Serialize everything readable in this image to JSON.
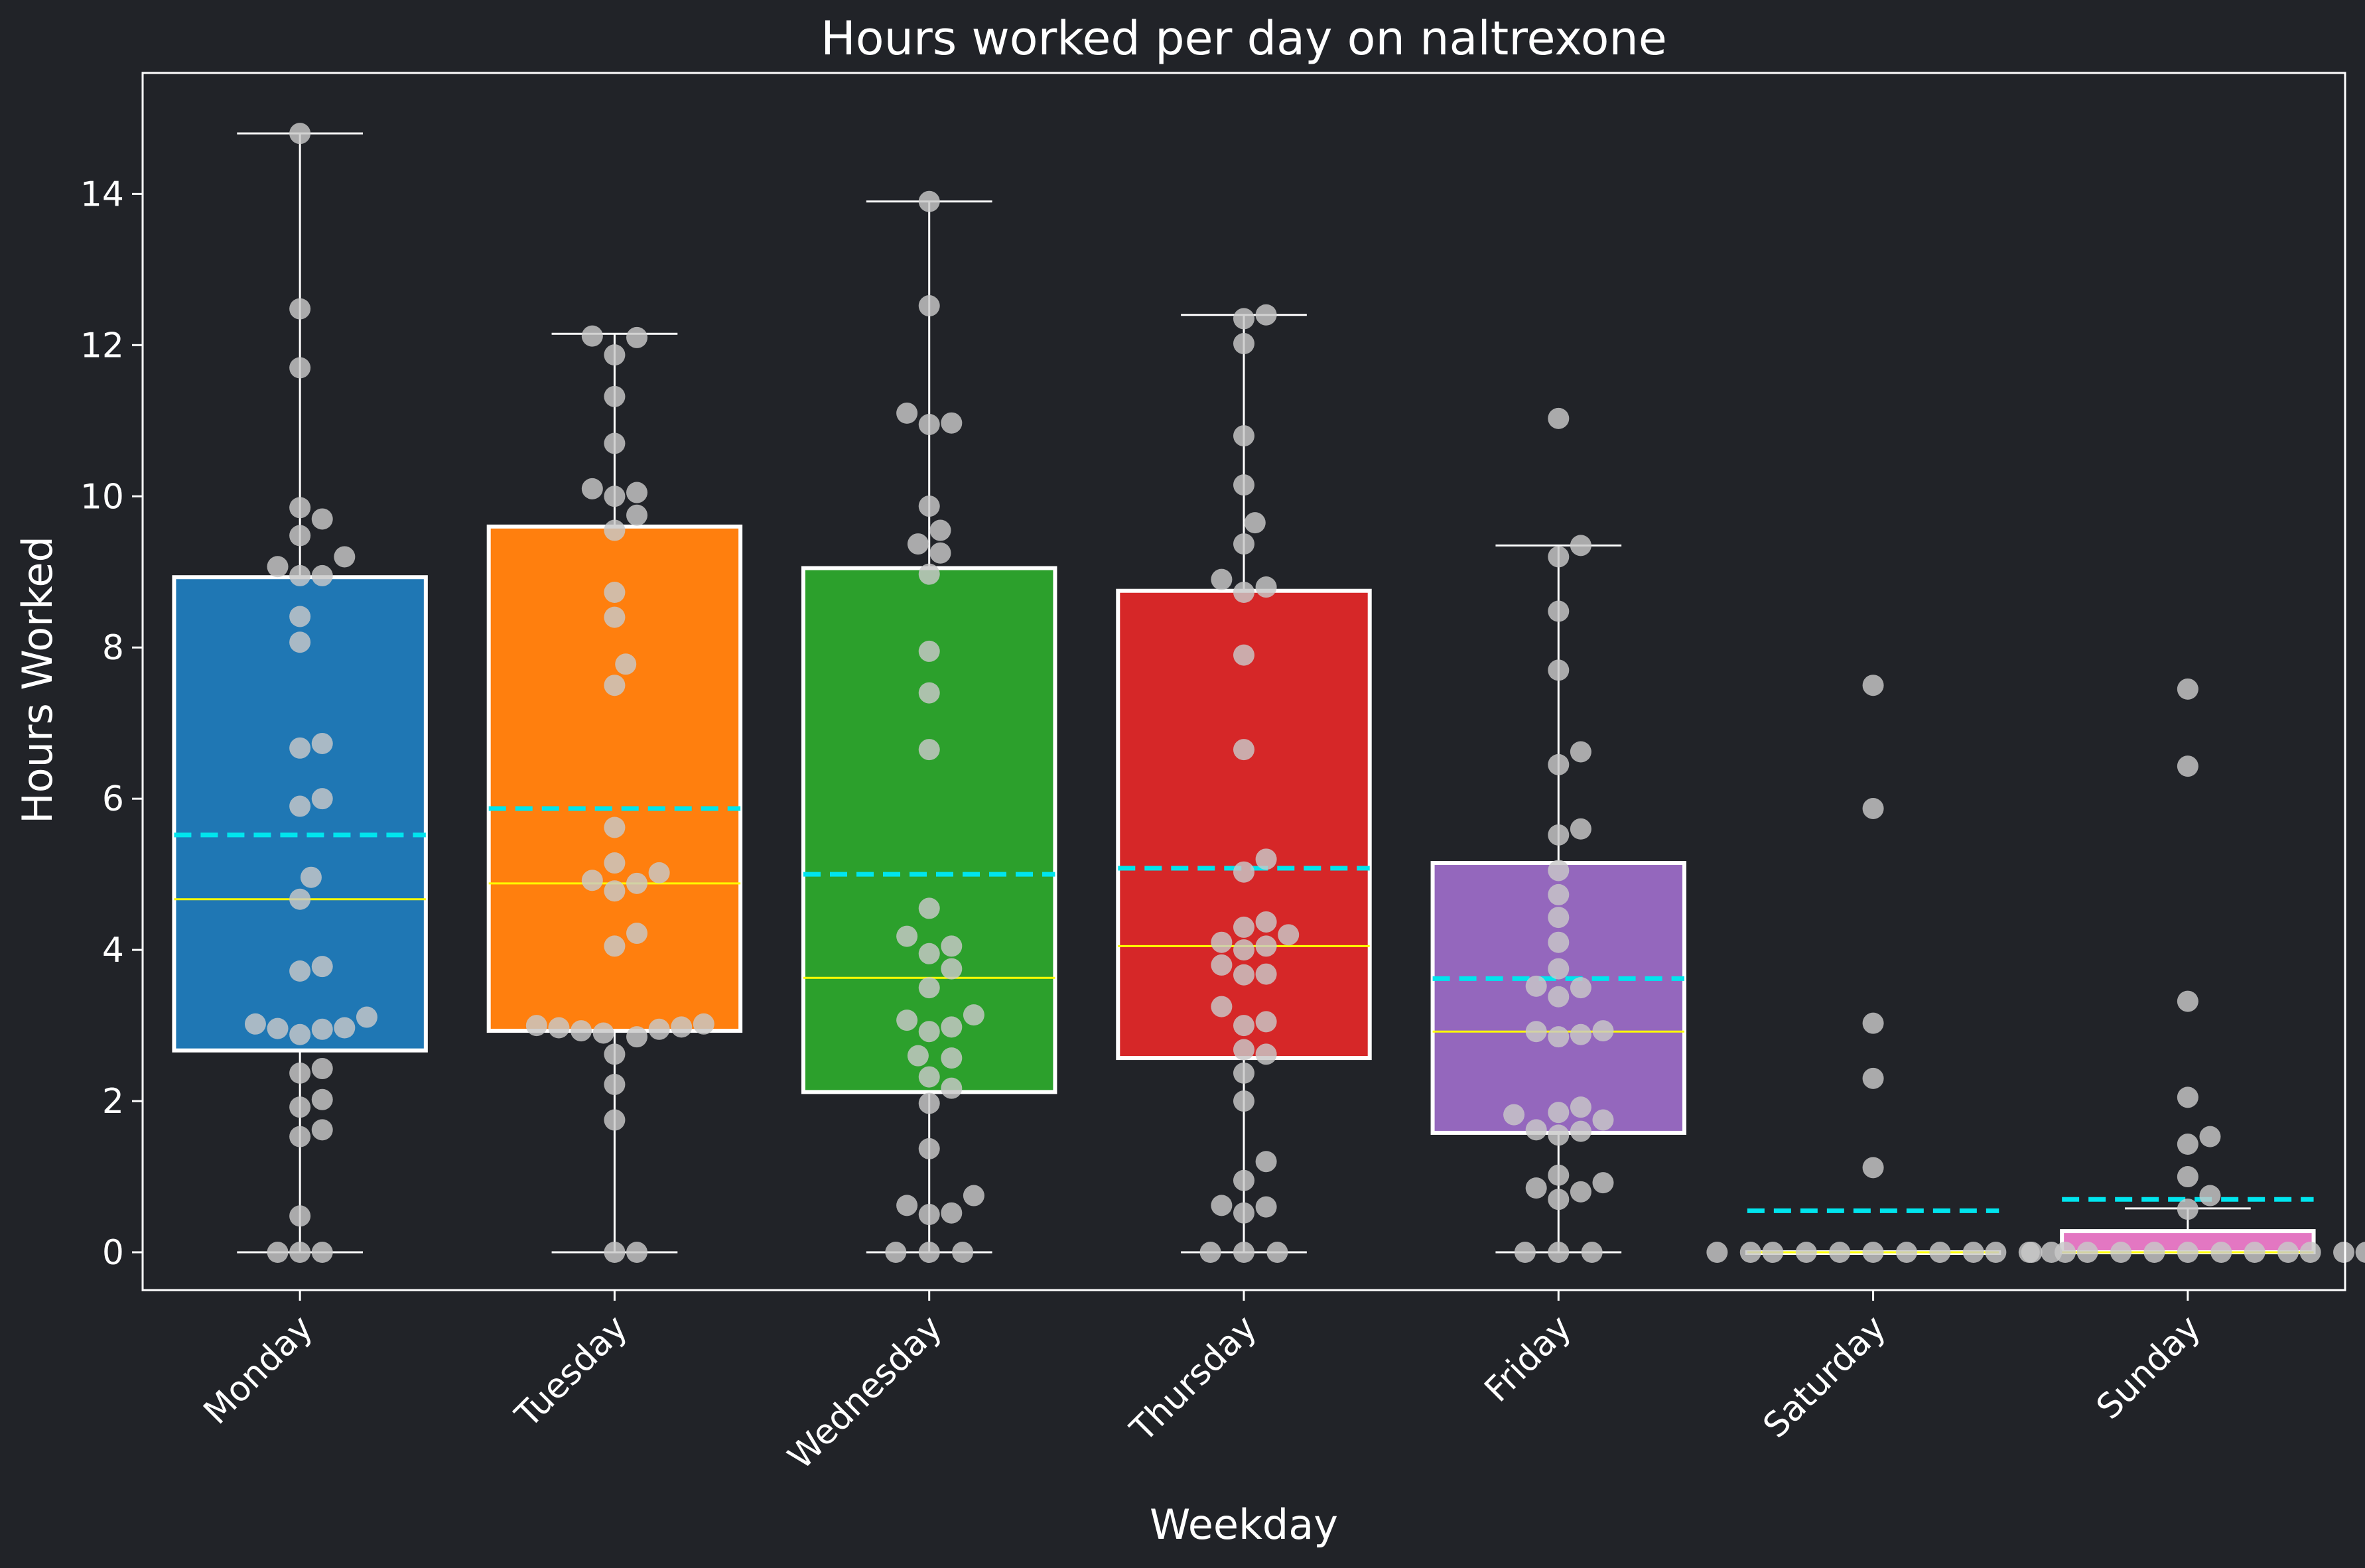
{
  "chart_data": {
    "type": "box",
    "title": "Hours worked per day on naltrexone",
    "xlabel": "Weekday",
    "ylabel": "Hours Worked",
    "ylim": [
      -0.5,
      15.6
    ],
    "yticks": [
      0,
      2,
      4,
      6,
      8,
      10,
      12,
      14
    ],
    "categories": [
      "Monday",
      "Tuesday",
      "Wednesday",
      "Thursday",
      "Friday",
      "Saturday",
      "Sunday"
    ],
    "colors": {
      "background": "#212328",
      "axes": "#ffffff",
      "median": "#ffff00",
      "mean": "#00e5ee",
      "points": "#c8c8c8",
      "Monday": "#1f77b4",
      "Tuesday": "#ff7f0e",
      "Wednesday": "#2ca02c",
      "Thursday": "#d62728",
      "Friday": "#9467bd",
      "Saturday": "#8c564b",
      "Sunday": "#e377c2"
    },
    "boxes": [
      {
        "category": "Monday",
        "q1": 2.67,
        "median": 4.67,
        "q3": 8.93,
        "whisker_low": 0,
        "whisker_high": 14.8,
        "mean": 5.52
      },
      {
        "category": "Tuesday",
        "q1": 2.93,
        "median": 4.88,
        "q3": 9.6,
        "whisker_low": 0,
        "whisker_high": 12.15,
        "mean": 5.87
      },
      {
        "category": "Wednesday",
        "q1": 2.12,
        "median": 3.63,
        "q3": 9.05,
        "whisker_low": 0,
        "whisker_high": 13.9,
        "mean": 5.0
      },
      {
        "category": "Thursday",
        "q1": 2.57,
        "median": 4.05,
        "q3": 8.75,
        "whisker_low": 0,
        "whisker_high": 12.4,
        "mean": 5.08
      },
      {
        "category": "Friday",
        "q1": 1.58,
        "median": 2.92,
        "q3": 5.15,
        "whisker_low": 0,
        "whisker_high": 9.35,
        "mean": 3.62
      },
      {
        "category": "Saturday",
        "q1": 0,
        "median": 0,
        "q3": 0,
        "whisker_low": 0,
        "whisker_high": 0,
        "mean": 0.55
      },
      {
        "category": "Sunday",
        "q1": 0,
        "median": 0,
        "q3": 0.28,
        "whisker_low": 0,
        "whisker_high": 0.58,
        "mean": 0.7
      }
    ],
    "points": [
      [
        0,
        0,
        0,
        0.48,
        1.53,
        1.62,
        1.92,
        2.02,
        2.37,
        2.43,
        2.88,
        2.95,
        2.96,
        2.97,
        3.02,
        3.11,
        3.72,
        3.78,
        4.67,
        4.96,
        5.9,
        6.0,
        6.67,
        6.73,
        8.07,
        8.41,
        8.95,
        8.95,
        9.07,
        9.2,
        9.48,
        9.7,
        9.85,
        11.7,
        12.48,
        14.8
      ],
      [
        0,
        0,
        1.75,
        2.22,
        2.62,
        2.85,
        2.9,
        2.93,
        2.95,
        2.97,
        2.98,
        3.0,
        3.02,
        4.05,
        4.22,
        4.78,
        4.88,
        4.92,
        5.02,
        5.15,
        5.62,
        7.5,
        7.78,
        8.4,
        8.73,
        9.55,
        9.75,
        10.0,
        10.05,
        10.1,
        10.7,
        11.32,
        11.87,
        12.1,
        12.12
      ],
      [
        0,
        0,
        0,
        0.5,
        0.52,
        0.62,
        0.75,
        1.37,
        1.97,
        2.17,
        2.32,
        2.57,
        2.6,
        2.92,
        2.98,
        3.07,
        3.14,
        3.5,
        3.75,
        3.95,
        4.05,
        4.18,
        4.55,
        6.65,
        7.4,
        7.95,
        8.97,
        9.25,
        9.37,
        9.55,
        9.87,
        10.95,
        10.97,
        11.1,
        12.52,
        13.9
      ],
      [
        0,
        0,
        0,
        0.52,
        0.6,
        0.62,
        0.95,
        1.2,
        2.0,
        2.37,
        2.62,
        2.68,
        3.0,
        3.05,
        3.25,
        3.67,
        3.68,
        3.8,
        4.0,
        4.05,
        4.1,
        4.2,
        4.3,
        4.37,
        5.03,
        5.2,
        6.65,
        7.9,
        8.73,
        8.8,
        8.9,
        9.37,
        9.65,
        10.15,
        10.8,
        12.02,
        12.35,
        12.4
      ],
      [
        0,
        0,
        0,
        0.7,
        0.8,
        0.85,
        0.92,
        1.02,
        1.55,
        1.6,
        1.62,
        1.75,
        1.82,
        1.85,
        1.92,
        2.85,
        2.88,
        2.92,
        2.93,
        3.38,
        3.5,
        3.52,
        3.75,
        4.1,
        4.43,
        4.73,
        5.05,
        5.52,
        5.6,
        6.45,
        6.62,
        7.7,
        8.48,
        9.2,
        9.35,
        11.03
      ],
      [
        0,
        0,
        0,
        0,
        0,
        0,
        0,
        0,
        0,
        0,
        0,
        0,
        1.12,
        2.3,
        3.03,
        5.87,
        7.5
      ],
      [
        0,
        0,
        0,
        0,
        0,
        0,
        0,
        0,
        0,
        0,
        0,
        0,
        0.57,
        0.75,
        1.0,
        1.43,
        1.53,
        2.05,
        3.32,
        6.43,
        7.45
      ]
    ]
  }
}
